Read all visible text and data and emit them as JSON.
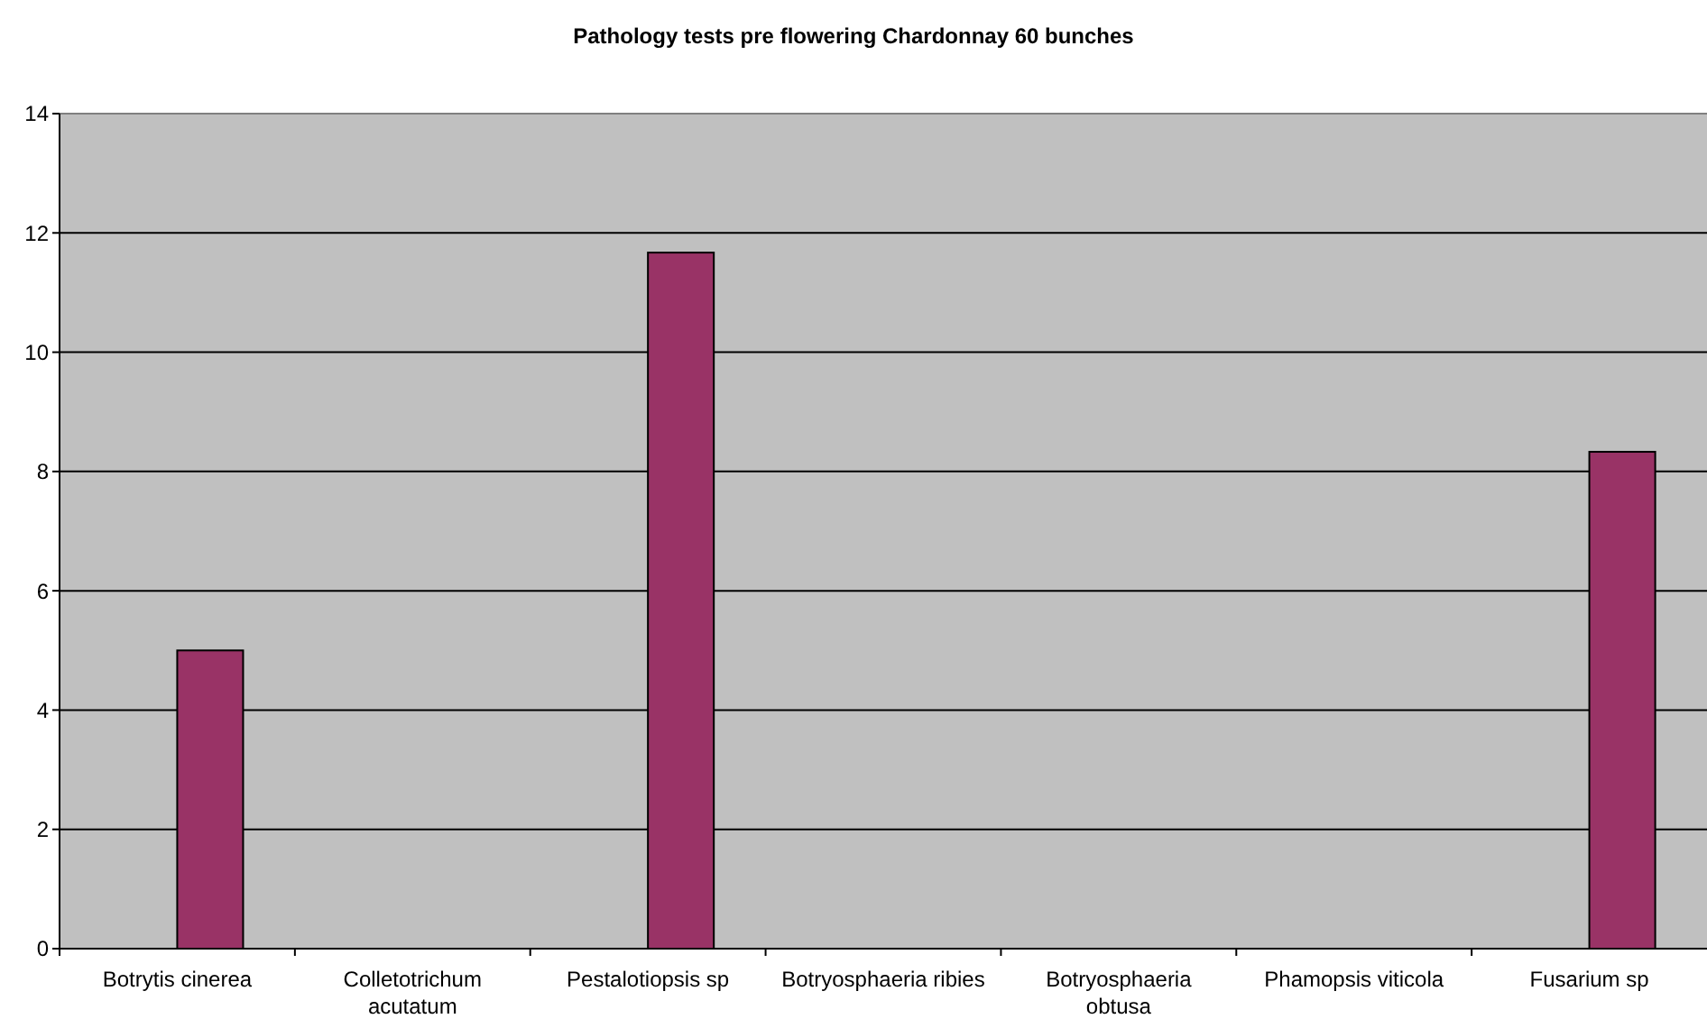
{
  "chart_data": {
    "type": "bar",
    "title": "Pathology tests pre flowering Chardonnay 60 bunches",
    "categories": [
      "Botrytis cinerea",
      "Colletotrichum acutatum",
      "Pestalotiopsis sp",
      "Botryosphaeria ribies",
      "Botryosphaeria obtusa",
      "Phamopsis viticola",
      "Fusarium sp"
    ],
    "values": [
      5,
      0,
      11.67,
      0,
      0,
      0,
      8.33
    ],
    "color": "#993366",
    "ylim": [
      0,
      14
    ],
    "yticks": [
      0,
      2,
      4,
      6,
      8,
      10,
      12,
      14
    ],
    "grid": "y"
  }
}
